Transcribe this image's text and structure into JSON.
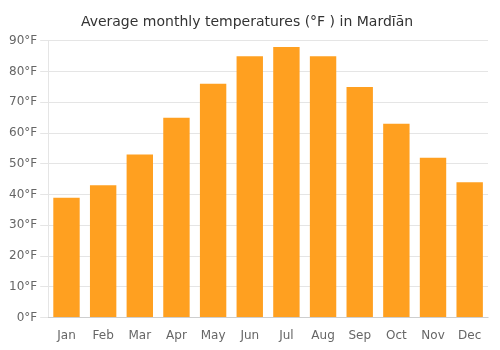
{
  "chart_data": {
    "type": "bar",
    "title": "Average monthly temperatures (°F ) in Mardīān",
    "categories": [
      "Jan",
      "Feb",
      "Mar",
      "Apr",
      "May",
      "Jun",
      "Jul",
      "Aug",
      "Sep",
      "Oct",
      "Nov",
      "Dec"
    ],
    "values": [
      39,
      43,
      53,
      65,
      76,
      85,
      88,
      85,
      75,
      63,
      52,
      44
    ],
    "color": "#FFA020",
    "ylim": [
      0,
      90
    ],
    "yticks": [
      {
        "value": 0,
        "label": "0°F"
      },
      {
        "value": 10,
        "label": "10°F"
      },
      {
        "value": 20,
        "label": "20°F"
      },
      {
        "value": 30,
        "label": "30°F"
      },
      {
        "value": 40,
        "label": "40°F"
      },
      {
        "value": 50,
        "label": "50°F"
      },
      {
        "value": 60,
        "label": "60°F"
      },
      {
        "value": 70,
        "label": "70°F"
      },
      {
        "value": 80,
        "label": "80°F"
      },
      {
        "value": 90,
        "label": "90°F"
      }
    ],
    "grid": true
  }
}
